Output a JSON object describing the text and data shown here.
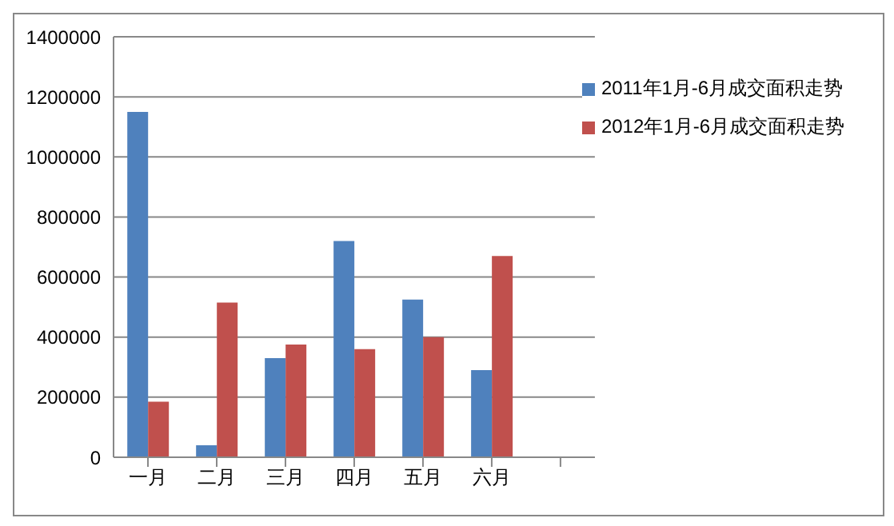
{
  "chart_data": {
    "type": "bar",
    "categories": [
      "一月",
      "二月",
      "三月",
      "四月",
      "五月",
      "六月",
      null
    ],
    "series": [
      {
        "name": "2011年1月-6月成交面积走势",
        "color": "#4f81bd",
        "values": [
          1150000,
          40000,
          330000,
          720000,
          525000,
          290000,
          null
        ]
      },
      {
        "name": "2012年1月-6月成交面积走势",
        "color": "#c0504d",
        "values": [
          185000,
          515000,
          375000,
          360000,
          400000,
          670000,
          null
        ]
      }
    ],
    "ylim": [
      0,
      1400000
    ],
    "yticks": [
      0,
      200000,
      400000,
      600000,
      800000,
      1000000,
      1200000,
      1400000
    ],
    "grid": "y",
    "legend": "top right"
  }
}
